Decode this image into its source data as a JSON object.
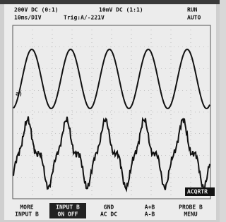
{
  "header": {
    "line1": {
      "ch_a": "200V DC (0:1)",
      "ch_b": "10mV DC (1:1)",
      "status": "RUN"
    },
    "line2": {
      "timebase": "10ms/DIV",
      "trigger": "Trig:A/-221V",
      "mode": "AUTO"
    }
  },
  "markers": {
    "trace_a": "a)",
    "cursor": "ACQRTR"
  },
  "menu": [
    {
      "line1": "MORE",
      "line2": "INPUT B"
    },
    {
      "line1": "INPUT B",
      "line2": "ON OFF"
    },
    {
      "line1": "GND",
      "line2": "AC DC"
    },
    {
      "line1": "A+B",
      "line2": "A-B"
    },
    {
      "line1": "PROBE B",
      "line2": "MENU"
    }
  ]
}
